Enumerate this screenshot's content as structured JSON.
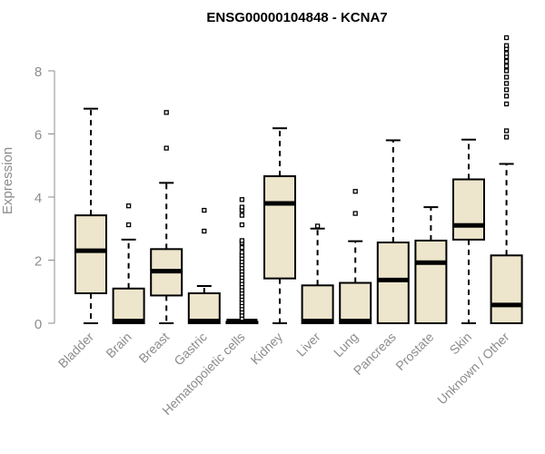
{
  "chart_data": {
    "type": "boxplot",
    "title": "ENSG00000104848 - KCNA7",
    "xlabel": "",
    "ylabel": "Expression",
    "ylim": [
      0,
      9.2
    ],
    "yticks": [
      0,
      2,
      4,
      6,
      8
    ],
    "categories": [
      "Bladder",
      "Brain",
      "Breast",
      "Gastric",
      "Hematopoietic cells",
      "Kidney",
      "Liver",
      "Lung",
      "Pancreas",
      "Prostate",
      "Skin",
      "Unknown / Other"
    ],
    "boxes": [
      {
        "name": "Bladder",
        "min": 0,
        "q1": 0.95,
        "median": 2.3,
        "q3": 3.42,
        "max": 6.8,
        "outliers": []
      },
      {
        "name": "Brain",
        "min": 0,
        "q1": 0,
        "median": 0.03,
        "q3": 1.1,
        "max": 2.65,
        "outliers": [
          3.12,
          3.72
        ]
      },
      {
        "name": "Breast",
        "min": 0,
        "q1": 0.88,
        "median": 1.65,
        "q3": 2.35,
        "max": 4.45,
        "outliers": [
          5.55,
          6.68
        ]
      },
      {
        "name": "Gastric",
        "min": 0,
        "q1": 0,
        "median": 0.03,
        "q3": 0.95,
        "max": 1.18,
        "outliers": [
          2.92,
          3.58
        ]
      },
      {
        "name": "Hematopoietic cells",
        "min": 0,
        "q1": 0,
        "median": 0.03,
        "q3": 0.05,
        "max": 0.08,
        "outliers": [
          0.15,
          0.25,
          0.35,
          0.45,
          0.55,
          0.65,
          0.75,
          0.85,
          0.95,
          1.05,
          1.15,
          1.25,
          1.35,
          1.45,
          1.55,
          1.65,
          1.75,
          1.85,
          1.95,
          2.05,
          2.15,
          2.25,
          2.4,
          2.55,
          2.62,
          3.12,
          3.42,
          3.58,
          3.68,
          3.92
        ]
      },
      {
        "name": "Kidney",
        "min": 0,
        "q1": 1.42,
        "median": 3.8,
        "q3": 4.66,
        "max": 6.18,
        "outliers": []
      },
      {
        "name": "Liver",
        "min": 0,
        "q1": 0,
        "median": 0.03,
        "q3": 1.2,
        "max": 3.0,
        "outliers": [
          3.08
        ]
      },
      {
        "name": "Lung",
        "min": 0,
        "q1": 0,
        "median": 0.03,
        "q3": 1.28,
        "max": 2.6,
        "outliers": [
          3.48,
          4.18
        ]
      },
      {
        "name": "Pancreas",
        "min": 0,
        "q1": 0,
        "median": 1.37,
        "q3": 2.56,
        "max": 5.8,
        "outliers": []
      },
      {
        "name": "Prostate",
        "min": 0,
        "q1": 0,
        "median": 1.92,
        "q3": 2.62,
        "max": 3.68,
        "outliers": []
      },
      {
        "name": "Skin",
        "min": 0,
        "q1": 2.65,
        "median": 3.1,
        "q3": 4.56,
        "max": 5.82,
        "outliers": []
      },
      {
        "name": "Unknown / Other",
        "min": 0,
        "q1": 0,
        "median": 0.58,
        "q3": 2.15,
        "max": 5.05,
        "outliers": [
          5.9,
          6.1,
          6.95,
          7.2,
          7.4,
          7.6,
          7.8,
          8.0,
          8.15,
          8.3,
          8.45,
          8.55,
          8.7,
          8.8,
          9.05
        ]
      }
    ]
  }
}
